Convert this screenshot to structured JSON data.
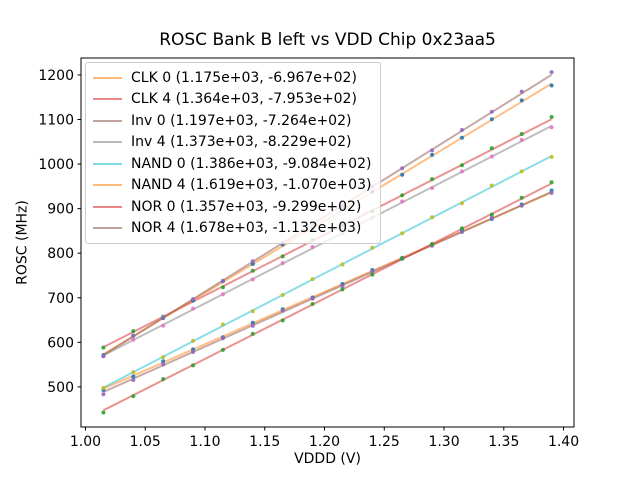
{
  "figure": {
    "kind": "matplotlib-figure"
  },
  "chart_data": {
    "type": "scatter",
    "title": "ROSC Bank B left vs VDD Chip 0x23aa5",
    "xlabel": "VDDD (V)",
    "ylabel": "ROSC (MHz)",
    "xlim": [
      0.99625,
      1.40875
    ],
    "ylim": [
      410,
      1238
    ],
    "xtick_values": [
      1.0,
      1.05,
      1.1,
      1.15,
      1.2,
      1.25,
      1.3,
      1.35,
      1.4
    ],
    "xtick_labels": [
      "1.00",
      "1.05",
      "1.10",
      "1.15",
      "1.20",
      "1.25",
      "1.30",
      "1.35",
      "1.40"
    ],
    "ytick_values": [
      500,
      600,
      700,
      800,
      900,
      1000,
      1100,
      1200
    ],
    "ytick_labels": [
      "500",
      "600",
      "700",
      "800",
      "900",
      "1000",
      "1100",
      "1200"
    ],
    "grid": false,
    "legend_position": "upper left",
    "marker": "o",
    "line_alpha": 0.5,
    "marker_alpha": 0.9,
    "x": [
      1.015,
      1.04,
      1.065,
      1.09,
      1.115,
      1.14,
      1.165,
      1.19,
      1.215,
      1.24,
      1.265,
      1.29,
      1.315,
      1.34,
      1.365,
      1.39
    ],
    "series": [
      {
        "name": "CLK 0",
        "legend_label": "CLK 0 (1.175e+03, -6.967e+02)",
        "fit_slope": 1175.0,
        "fit_intercept": -696.7,
        "line_color": "#ff7f0e",
        "marker_color": "#1f77b4",
        "residuals": [
          -3,
          -2,
          3,
          0,
          -2,
          1,
          2,
          -1,
          0,
          2,
          -2,
          1,
          3,
          -1,
          2,
          4
        ]
      },
      {
        "name": "CLK 4",
        "legend_label": "CLK 4 (1.364e+03, -7.953e+02)",
        "fit_slope": 1364.0,
        "fit_intercept": -795.3,
        "line_color": "#d62728",
        "marker_color": "#2ca02c",
        "residuals": [
          -1,
          2,
          0,
          3,
          -2,
          1,
          -1,
          2,
          1,
          -2,
          0,
          2,
          -1,
          3,
          1,
          5
        ]
      },
      {
        "name": "Inv 0",
        "legend_label": "Inv 0 (1.197e+03, -7.264e+02)",
        "fit_slope": 1197.0,
        "fit_intercept": -726.4,
        "line_color": "#8c564b",
        "marker_color": "#9467bd",
        "residuals": [
          -5,
          -3,
          2,
          0,
          1,
          -1,
          3,
          0,
          -2,
          1,
          2,
          -1,
          0,
          2,
          -1,
          -2
        ]
      },
      {
        "name": "Inv 4",
        "legend_label": "Inv 4 (1.373e+03, -8.229e+02)",
        "fit_slope": 1373.0,
        "fit_intercept": -822.9,
        "line_color": "#7f7f7f",
        "marker_color": "#e377c2",
        "residuals": [
          -2,
          1,
          -2,
          2,
          0,
          -1,
          1,
          3,
          -1,
          0,
          2,
          -2,
          1,
          0,
          3,
          -3
        ]
      },
      {
        "name": "NAND 0",
        "legend_label": "NAND 0 (1.386e+03, -9.084e+02)",
        "fit_slope": 1386.0,
        "fit_intercept": -908.4,
        "line_color": "#17becf",
        "marker_color": "#bcbd22",
        "residuals": [
          -1,
          0,
          -1,
          1,
          3,
          -2,
          0,
          1,
          -1,
          2,
          0,
          1,
          -2,
          3,
          0,
          -2
        ]
      },
      {
        "name": "NAND 4",
        "legend_label": "NAND 4 (1.619e+03, -1.070e+03)",
        "fit_slope": 1619.0,
        "fit_intercept": -1070.0,
        "line_color": "#ff7f0e",
        "marker_color": "#1f77b4",
        "residuals": [
          -2,
          1,
          0,
          -1,
          2,
          0,
          3,
          -1,
          1,
          0,
          -2,
          2,
          0,
          1,
          3,
          -4
        ]
      },
      {
        "name": "NOR 0",
        "legend_label": "NOR 0 (1.357e+03, -9.299e+02)",
        "fit_slope": 1357.0,
        "fit_intercept": -929.9,
        "line_color": "#d62728",
        "marker_color": "#2ca02c",
        "residuals": [
          -5,
          -2,
          2,
          -1,
          0,
          2,
          -2,
          1,
          0,
          -1,
          2,
          0,
          1,
          -2,
          2,
          3
        ]
      },
      {
        "name": "NOR 4",
        "legend_label": "NOR 4 (1.678e+03, -1.132e+03)",
        "fit_slope": 1678.0,
        "fit_intercept": -1132.0,
        "line_color": "#8c564b",
        "marker_color": "#9467bd",
        "residuals": [
          -2,
          2,
          1,
          0,
          -1,
          1,
          0,
          2,
          -1,
          1,
          0,
          -2,
          2,
          1,
          4,
          6
        ]
      }
    ]
  }
}
